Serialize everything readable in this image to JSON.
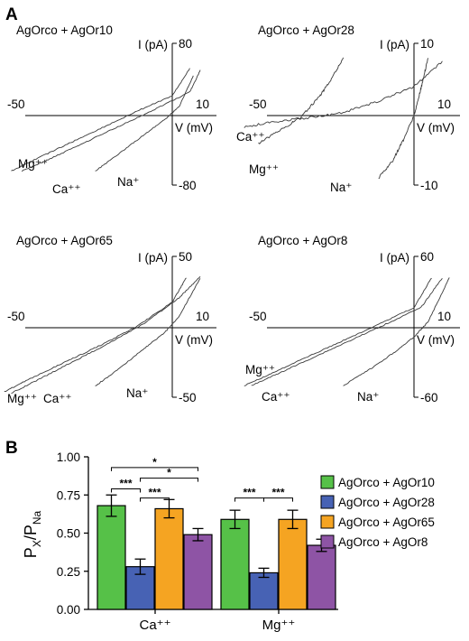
{
  "panel_labels": [
    "A",
    "B"
  ],
  "chart_data": [
    {
      "type": "line",
      "title": "AgOrco + AgOr10",
      "xlabel": "V (mV)",
      "ylabel": "I (pA)",
      "xlim": [
        -50,
        10
      ],
      "ylim": [
        -80,
        80
      ],
      "x_tick_labels": [
        "-50",
        "10"
      ],
      "y_tick_labels": [
        "80",
        "-80"
      ],
      "series": [
        {
          "name": "Mg⁺⁺",
          "x": [
            -46,
            -40,
            -30,
            -20,
            -10,
            0,
            5
          ],
          "y": [
            -64,
            -52,
            -33,
            -14,
            5,
            22,
            52
          ]
        },
        {
          "name": "Ca⁺⁺",
          "x": [
            -43,
            -35,
            -25,
            -15,
            -5,
            5,
            8
          ],
          "y": [
            -64,
            -50,
            -31,
            -12,
            7,
            26,
            50
          ]
        },
        {
          "name": "Na⁺",
          "x": [
            -22,
            -15,
            -8,
            -2,
            2,
            6
          ],
          "y": [
            -64,
            -43,
            -22,
            -4,
            10,
            44
          ]
        }
      ]
    },
    {
      "type": "line",
      "title": "AgOrco + AgOr28",
      "xlabel": "V (mV)",
      "ylabel": "I (pA)",
      "xlim": [
        -50,
        10
      ],
      "ylim": [
        -10,
        10
      ],
      "x_tick_labels": [
        "-50",
        "10"
      ],
      "y_tick_labels": [
        "10",
        "-10"
      ],
      "series": [
        {
          "name": "Ca⁺⁺",
          "x": [
            -48,
            -40,
            -30,
            -20,
            -10,
            0,
            8
          ],
          "y": [
            -1.7,
            -0.9,
            -0.3,
            0.4,
            2.0,
            4.0,
            7.5
          ]
        },
        {
          "name": "Mg⁺⁺",
          "x": [
            -44,
            -38,
            -32,
            -27,
            -24,
            -20
          ],
          "y": [
            -4.0,
            -2.2,
            -0.2,
            2.5,
            4.5,
            8.0
          ]
        },
        {
          "name": "Na⁺",
          "x": [
            -10,
            -6,
            -3,
            0,
            2,
            4
          ],
          "y": [
            -9.0,
            -6.5,
            -3.5,
            0.0,
            3.8,
            8.0
          ]
        }
      ]
    },
    {
      "type": "line",
      "title": "AgOrco + AgOr65",
      "xlabel": "V (mV)",
      "ylabel": "I (pA)",
      "xlim": [
        -50,
        10
      ],
      "ylim": [
        -50,
        50
      ],
      "x_tick_labels": [
        "-50",
        "10"
      ],
      "y_tick_labels": [
        "50",
        "-50"
      ],
      "series": [
        {
          "name": "Mg⁺⁺",
          "x": [
            -48,
            -40,
            -30,
            -20,
            -10,
            0,
            4
          ],
          "y": [
            -46,
            -36,
            -24,
            -12,
            1,
            18,
            35
          ]
        },
        {
          "name": "Ca⁺⁺",
          "x": [
            -46,
            -38,
            -28,
            -18,
            -8,
            2,
            8
          ],
          "y": [
            -47,
            -37,
            -24,
            -11,
            3,
            21,
            36
          ]
        },
        {
          "name": "Na⁺",
          "x": [
            -22,
            -15,
            -8,
            -2,
            2,
            8
          ],
          "y": [
            -42,
            -29,
            -15,
            -3,
            8,
            35
          ]
        }
      ]
    },
    {
      "type": "line",
      "title": "AgOrco + AgOr8",
      "xlabel": "V (mV)",
      "ylabel": "I (pA)",
      "xlim": [
        -50,
        10
      ],
      "ylim": [
        -60,
        60
      ],
      "x_tick_labels": [
        "-50",
        "10"
      ],
      "y_tick_labels": [
        "60",
        "-60"
      ],
      "series": [
        {
          "name": "Mg⁺⁺",
          "x": [
            -48,
            -40,
            -30,
            -20,
            -10,
            0,
            5
          ],
          "y": [
            -50,
            -39,
            -25,
            -11,
            3,
            17,
            42
          ]
        },
        {
          "name": "Ca⁺⁺",
          "x": [
            -46,
            -38,
            -28,
            -18,
            -8,
            2,
            8
          ],
          "y": [
            -50,
            -39,
            -25,
            -11,
            3,
            17,
            42
          ]
        },
        {
          "name": "Na⁺",
          "x": [
            -20,
            -12,
            -5,
            0,
            4,
            10
          ],
          "y": [
            -50,
            -35,
            -20,
            -8,
            5,
            42
          ]
        }
      ]
    },
    {
      "type": "bar",
      "ylabel_main": "P",
      "ylabel_sub1": "X",
      "ylabel_mid": "/P",
      "ylabel_sub2": "Na",
      "categories": [
        "Ca⁺⁺",
        "Mg⁺⁺"
      ],
      "ylim": [
        0,
        1.0
      ],
      "y_tick_labels": [
        "0.00",
        "0.25",
        "0.50",
        "0.75",
        "1.00"
      ],
      "series": [
        {
          "name": "AgOrco + AgOr10",
          "color": "#56c148",
          "values": [
            0.68,
            0.59
          ],
          "errors": [
            0.07,
            0.06
          ]
        },
        {
          "name": "AgOrco + AgOr28",
          "color": "#4762b4",
          "values": [
            0.28,
            0.24
          ],
          "errors": [
            0.05,
            0.03
          ]
        },
        {
          "name": "AgOrco + AgOr65",
          "color": "#f5a422",
          "values": [
            0.66,
            0.59
          ],
          "errors": [
            0.06,
            0.06
          ]
        },
        {
          "name": "AgOrco + AgOr8",
          "color": "#8e54a5",
          "values": [
            0.49,
            0.42
          ],
          "errors": [
            0.04,
            0.04
          ]
        }
      ],
      "significance": [
        {
          "group": 0,
          "from": 0,
          "to": 1,
          "label": "***",
          "y": 0.79
        },
        {
          "group": 0,
          "from": 1,
          "to": 2,
          "label": "***",
          "y": 0.73
        },
        {
          "group": 0,
          "from": 1,
          "to": 3,
          "label": "*",
          "y": 0.86
        },
        {
          "group": 0,
          "from": 0,
          "to": 3,
          "label": "*",
          "y": 0.93
        },
        {
          "group": 1,
          "from": 0,
          "to": 1,
          "label": "***",
          "y": 0.73
        },
        {
          "group": 1,
          "from": 1,
          "to": 2,
          "label": "***",
          "y": 0.73
        }
      ]
    }
  ]
}
